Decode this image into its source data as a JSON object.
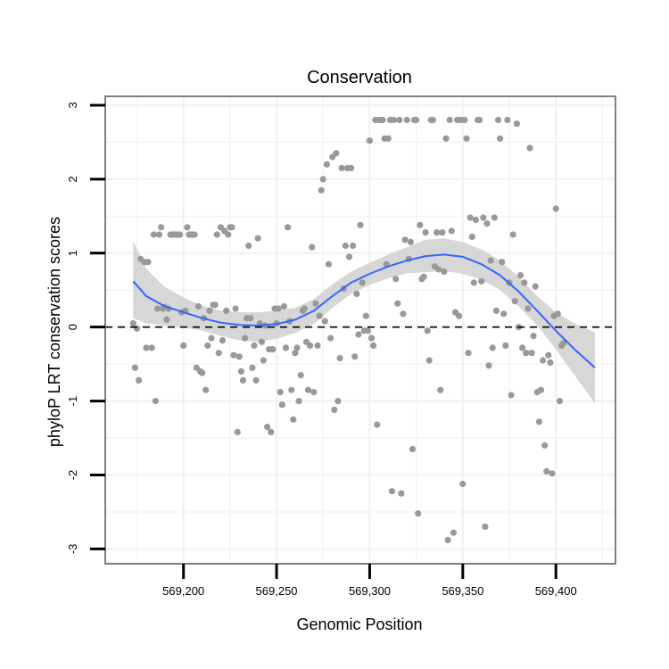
{
  "chart_data": {
    "type": "scatter",
    "title": "Conservation",
    "xlabel": "Genomic Position",
    "ylabel": "phyloP LRT conservation scores",
    "xlim": [
      569158,
      569432
    ],
    "ylim": [
      -3.2,
      3.12
    ],
    "x_ticks": [
      569200,
      569250,
      569300,
      569350,
      569400
    ],
    "x_tick_labels": [
      "569,200",
      "569,250",
      "569,300",
      "569,350",
      "569,400"
    ],
    "y_ticks": [
      -3,
      -2,
      -1,
      0,
      1,
      2,
      3
    ],
    "y_tick_labels": [
      "-3",
      "-2",
      "-1",
      "0",
      "1",
      "2",
      "3"
    ],
    "reference_line": {
      "y": 0,
      "style": "dashed"
    },
    "colors": {
      "points": "#999999",
      "smooth": "#3366FF",
      "band": "#D3D3D3",
      "frame": "#7F7F7F",
      "grid": "#F2F2F2"
    },
    "series": [
      {
        "name": "phyloP scores",
        "kind": "points",
        "points": [
          [
            569173,
            0.05
          ],
          [
            569174,
            -0.55
          ],
          [
            569175,
            -0.02
          ],
          [
            569176,
            -0.72
          ],
          [
            569177,
            0.92
          ],
          [
            569179,
            0.88
          ],
          [
            569180,
            -0.28
          ],
          [
            569181,
            0.88
          ],
          [
            569183,
            -0.28
          ],
          [
            569184,
            1.25
          ],
          [
            569185,
            -1.0
          ],
          [
            569186,
            0.25
          ],
          [
            569187,
            1.25
          ],
          [
            569188,
            1.35
          ],
          [
            569189,
            0.25
          ],
          [
            569190,
            0.27
          ],
          [
            569191,
            0.1
          ],
          [
            569192,
            0.25
          ],
          [
            569193,
            1.25
          ],
          [
            569194,
            1.25
          ],
          [
            569195,
            1.25
          ],
          [
            569196,
            1.25
          ],
          [
            569197,
            1.25
          ],
          [
            569198,
            1.25
          ],
          [
            569199,
            0.2
          ],
          [
            569200,
            -0.25
          ],
          [
            569201,
            0.22
          ],
          [
            569202,
            1.35
          ],
          [
            569203,
            1.25
          ],
          [
            569204,
            1.25
          ],
          [
            569205,
            1.25
          ],
          [
            569206,
            1.25
          ],
          [
            569207,
            -0.55
          ],
          [
            569208,
            0.28
          ],
          [
            569209,
            -0.6
          ],
          [
            569210,
            -0.62
          ],
          [
            569211,
            0.12
          ],
          [
            569212,
            -0.85
          ],
          [
            569213,
            -0.25
          ],
          [
            569214,
            0.22
          ],
          [
            569215,
            -0.15
          ],
          [
            569216,
            0.3
          ],
          [
            569217,
            0.3
          ],
          [
            569218,
            1.25
          ],
          [
            569219,
            -0.35
          ],
          [
            569220,
            1.35
          ],
          [
            569221,
            -0.18
          ],
          [
            569222,
            1.3
          ],
          [
            569223,
            0.22
          ],
          [
            569224,
            1.25
          ],
          [
            569225,
            1.35
          ],
          [
            569226,
            1.35
          ],
          [
            569227,
            -0.38
          ],
          [
            569228,
            0.25
          ],
          [
            569229,
            -1.42
          ],
          [
            569230,
            -0.4
          ],
          [
            569231,
            -0.6
          ],
          [
            569232,
            -0.72
          ],
          [
            569233,
            -0.15
          ],
          [
            569234,
            0.12
          ],
          [
            569235,
            1.1
          ],
          [
            569236,
            0.12
          ],
          [
            569237,
            -0.55
          ],
          [
            569238,
            -0.25
          ],
          [
            569239,
            -0.72
          ],
          [
            569240,
            1.2
          ],
          [
            569241,
            0.05
          ],
          [
            569242,
            -0.2
          ],
          [
            569243,
            -0.45
          ],
          [
            569244,
            0.02
          ],
          [
            569245,
            -1.35
          ],
          [
            569246,
            -0.3
          ],
          [
            569247,
            -1.42
          ],
          [
            569248,
            -0.3
          ],
          [
            569249,
            0.25
          ],
          [
            569250,
            0.05
          ],
          [
            569251,
            0.25
          ],
          [
            569252,
            -0.88
          ],
          [
            569253,
            -1.05
          ],
          [
            569254,
            0.28
          ],
          [
            569255,
            -0.28
          ],
          [
            569256,
            1.35
          ],
          [
            569257,
            0.08
          ],
          [
            569258,
            -0.85
          ],
          [
            569259,
            -1.25
          ],
          [
            569260,
            -0.35
          ],
          [
            569261,
            -0.28
          ],
          [
            569262,
            -1.0
          ],
          [
            569263,
            -0.65
          ],
          [
            569264,
            0.22
          ],
          [
            569265,
            0.25
          ],
          [
            569266,
            -0.2
          ],
          [
            569267,
            -0.85
          ],
          [
            569268,
            -0.25
          ],
          [
            569269,
            1.08
          ],
          [
            569270,
            -0.88
          ],
          [
            569271,
            0.32
          ],
          [
            569272,
            -0.25
          ],
          [
            569273,
            0.15
          ],
          [
            569274,
            1.85
          ],
          [
            569275,
            2.0
          ],
          [
            569276,
            0.08
          ],
          [
            569277,
            2.2
          ],
          [
            569278,
            0.85
          ],
          [
            569279,
            -0.15
          ],
          [
            569280,
            2.3
          ],
          [
            569281,
            -1.12
          ],
          [
            569282,
            2.35
          ],
          [
            569283,
            -1.0
          ],
          [
            569284,
            -0.42
          ],
          [
            569285,
            2.15
          ],
          [
            569286,
            0.52
          ],
          [
            569287,
            1.1
          ],
          [
            569288,
            2.15
          ],
          [
            569289,
            0.95
          ],
          [
            569290,
            2.15
          ],
          [
            569291,
            1.1
          ],
          [
            569292,
            -0.4
          ],
          [
            569293,
            0.45
          ],
          [
            569294,
            -0.1
          ],
          [
            569295,
            1.38
          ],
          [
            569296,
            0.6
          ],
          [
            569297,
            -0.05
          ],
          [
            569298,
            0.15
          ],
          [
            569299,
            -0.05
          ],
          [
            569300,
            2.52
          ],
          [
            569301,
            -0.15
          ],
          [
            569302,
            -0.25
          ],
          [
            569303,
            2.8
          ],
          [
            569304,
            -1.32
          ],
          [
            569305,
            2.8
          ],
          [
            569306,
            2.8
          ],
          [
            569307,
            2.8
          ],
          [
            569308,
            2.55
          ],
          [
            569309,
            0.85
          ],
          [
            569310,
            2.55
          ],
          [
            569311,
            2.8
          ],
          [
            569312,
            -2.22
          ],
          [
            569313,
            2.8
          ],
          [
            569314,
            0.65
          ],
          [
            569315,
            0.32
          ],
          [
            569316,
            2.8
          ],
          [
            569317,
            -2.25
          ],
          [
            569318,
            0.18
          ],
          [
            569319,
            1.18
          ],
          [
            569320,
            2.8
          ],
          [
            569321,
            0.92
          ],
          [
            569322,
            1.15
          ],
          [
            569323,
            -1.65
          ],
          [
            569324,
            2.8
          ],
          [
            569325,
            2.8
          ],
          [
            569326,
            -2.52
          ],
          [
            569327,
            1.38
          ],
          [
            569328,
            0.65
          ],
          [
            569329,
            0.68
          ],
          [
            569330,
            1.28
          ],
          [
            569331,
            -0.05
          ],
          [
            569332,
            -0.45
          ],
          [
            569333,
            2.8
          ],
          [
            569334,
            2.8
          ],
          [
            569335,
            0.82
          ],
          [
            569336,
            1.28
          ],
          [
            569337,
            0.78
          ],
          [
            569338,
            -0.85
          ],
          [
            569339,
            1.28
          ],
          [
            569340,
            0.75
          ],
          [
            569341,
            2.55
          ],
          [
            569342,
            -2.88
          ],
          [
            569343,
            2.8
          ],
          [
            569344,
            1.3
          ],
          [
            569345,
            -2.78
          ],
          [
            569346,
            0.2
          ],
          [
            569347,
            2.8
          ],
          [
            569348,
            0.15
          ],
          [
            569349,
            2.8
          ],
          [
            569350,
            -2.12
          ],
          [
            569351,
            2.8
          ],
          [
            569352,
            2.55
          ],
          [
            569353,
            -0.35
          ],
          [
            569354,
            1.48
          ],
          [
            569355,
            1.22
          ],
          [
            569356,
            0.6
          ],
          [
            569357,
            1.45
          ],
          [
            569358,
            2.8
          ],
          [
            569359,
            2.8
          ],
          [
            569360,
            0.62
          ],
          [
            569361,
            1.48
          ],
          [
            569362,
            -2.7
          ],
          [
            569363,
            1.4
          ],
          [
            569364,
            -0.52
          ],
          [
            569365,
            0.9
          ],
          [
            569366,
            -0.28
          ],
          [
            569367,
            1.48
          ],
          [
            569368,
            0.22
          ],
          [
            569369,
            2.8
          ],
          [
            569370,
            2.55
          ],
          [
            569371,
            0.88
          ],
          [
            569372,
            0.18
          ],
          [
            569373,
            -0.25
          ],
          [
            569374,
            2.8
          ],
          [
            569375,
            0.6
          ],
          [
            569376,
            -0.92
          ],
          [
            569377,
            1.25
          ],
          [
            569378,
            0.35
          ],
          [
            569379,
            2.75
          ],
          [
            569380,
            0.0
          ],
          [
            569381,
            0.7
          ],
          [
            569382,
            -0.28
          ],
          [
            569383,
            0.6
          ],
          [
            569384,
            -0.35
          ],
          [
            569385,
            0.25
          ],
          [
            569386,
            2.42
          ],
          [
            569387,
            -0.35
          ],
          [
            569388,
            -0.12
          ],
          [
            569389,
            0.55
          ],
          [
            569390,
            -0.88
          ],
          [
            569391,
            -1.28
          ],
          [
            569392,
            -0.85
          ],
          [
            569393,
            -0.45
          ],
          [
            569394,
            -1.6
          ],
          [
            569395,
            -1.95
          ],
          [
            569396,
            -0.38
          ],
          [
            569397,
            -0.48
          ],
          [
            569398,
            -1.98
          ],
          [
            569399,
            0.15
          ],
          [
            569400,
            1.6
          ],
          [
            569401,
            0.18
          ],
          [
            569402,
            -1.0
          ],
          [
            569403,
            -0.25
          ],
          [
            569404,
            -0.22
          ]
        ]
      },
      {
        "name": "loess fit",
        "kind": "smooth",
        "x": [
          569173,
          569180,
          569190,
          569200,
          569210,
          569220,
          569230,
          569240,
          569250,
          569260,
          569270,
          569280,
          569290,
          569300,
          569310,
          569320,
          569330,
          569340,
          569350,
          569360,
          569370,
          569380,
          569390,
          569400,
          569410,
          569421
        ],
        "y": [
          0.62,
          0.42,
          0.28,
          0.2,
          0.12,
          0.06,
          0.03,
          0.02,
          0.04,
          0.1,
          0.22,
          0.42,
          0.6,
          0.72,
          0.82,
          0.9,
          0.96,
          0.98,
          0.95,
          0.85,
          0.7,
          0.48,
          0.22,
          -0.05,
          -0.3,
          -0.55
        ],
        "ymin": [
          0.12,
          0.05,
          0.02,
          0.0,
          -0.05,
          -0.12,
          -0.18,
          -0.2,
          -0.16,
          -0.08,
          0.04,
          0.26,
          0.45,
          0.57,
          0.66,
          0.73,
          0.74,
          0.76,
          0.72,
          0.64,
          0.5,
          0.28,
          0.02,
          -0.3,
          -0.65,
          -1.03
        ],
        "ymax": [
          1.17,
          0.79,
          0.54,
          0.4,
          0.29,
          0.22,
          0.2,
          0.2,
          0.22,
          0.26,
          0.38,
          0.58,
          0.75,
          0.87,
          0.98,
          1.08,
          1.18,
          1.2,
          1.15,
          1.05,
          0.9,
          0.68,
          0.42,
          0.2,
          0.05,
          -0.07
        ]
      }
    ]
  }
}
